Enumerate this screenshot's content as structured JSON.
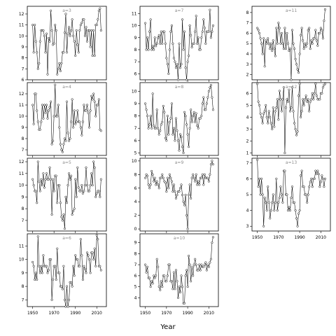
{
  "chart_data": {
    "type": "scatter",
    "title": "",
    "xlabel": "Year",
    "ylabel": "",
    "x_start": 1950,
    "x_end": 2014,
    "xlim": [
      1945,
      2019
    ],
    "x_ticks": [
      1950,
      1970,
      1990,
      2010
    ],
    "point_color": "#ffffff",
    "line_color": "#000000",
    "title_color": "#8c8c8c",
    "panels": [
      {
        "title": "a=3",
        "ylim": [
          6,
          12.7
        ],
        "yticks": [
          6,
          7,
          8,
          9,
          10,
          11,
          12
        ],
        "values": [
          11,
          8.5,
          11,
          9.5,
          8.5,
          7,
          7.5,
          9.5,
          10.5,
          10.5,
          10.5,
          10,
          8.5,
          10.2,
          6.5,
          9.8,
          9.5,
          12.3,
          10.5,
          9.2,
          9.3,
          11,
          10.5,
          6.5,
          7,
          7.5,
          6.8,
          7.5,
          8.5,
          8.5,
          10.3,
          12,
          8.5,
          10.2,
          10.8,
          10,
          10.5,
          11.5,
          10,
          9.5,
          8.2,
          10.5,
          9.2,
          8.5,
          10.5,
          11,
          11.2,
          11.5,
          11.5,
          10,
          10.8,
          9.5,
          10.5,
          10.5,
          9,
          10.5,
          8.2,
          10.5,
          8.2,
          11,
          11,
          11.5,
          12.3,
          12.5,
          10.5
        ]
      },
      {
        "title": "a=7",
        "ylim": [
          5.5,
          11.6
        ],
        "yticks": [
          6,
          7,
          8,
          9,
          10,
          11
        ],
        "values": [
          10.2,
          8,
          9,
          8,
          9.5,
          10.5,
          8,
          8.3,
          8,
          9,
          8.3,
          8.5,
          9,
          9.2,
          8.5,
          9.5,
          8.5,
          9.5,
          9.5,
          8.5,
          7.3,
          6.8,
          6,
          8,
          9.5,
          10,
          8.5,
          7.3,
          7,
          6.5,
          6.8,
          5.5,
          8.5,
          6.5,
          6.8,
          10.5,
          8,
          9.5,
          6.5,
          5.5,
          7,
          7.5,
          10,
          9.2,
          8.2,
          8.5,
          8.5,
          9.5,
          10.8,
          8.5,
          9,
          8,
          8,
          9,
          9.5,
          10.5,
          9.8,
          8.5,
          9.5,
          9.5,
          9.5,
          11.3,
          9,
          9.5,
          10
        ]
      },
      {
        "title": "a=11",
        "ylim": [
          1.5,
          8.6
        ],
        "yticks": [
          2,
          3,
          4,
          5,
          6,
          7,
          8
        ],
        "values": [
          6.5,
          6.3,
          6,
          5.5,
          5,
          4,
          5.5,
          2.8,
          5.3,
          5,
          5.5,
          5,
          4.5,
          5,
          4.3,
          5.3,
          4.5,
          3.8,
          6.5,
          5,
          7,
          6.5,
          5,
          6,
          5,
          4.5,
          6.5,
          4.5,
          6,
          5,
          4.3,
          4.5,
          1.5,
          6.3,
          5,
          4.5,
          3.5,
          3,
          2.5,
          2.2,
          4,
          5.8,
          6.5,
          5.3,
          4.5,
          5,
          4.7,
          5,
          6.3,
          6.5,
          4.5,
          5.3,
          5,
          5.5,
          5.5,
          6.3,
          5.3,
          4.8,
          6,
          6,
          6.5,
          6.3,
          5.5,
          7.2,
          8.3
        ]
      },
      {
        "title": "a=4",
        "ylim": [
          6.5,
          13
        ],
        "yticks": [
          7,
          8,
          9,
          10,
          11,
          12
        ],
        "values": [
          11,
          9.3,
          12,
          12,
          10.5,
          9.5,
          8.8,
          8.8,
          9.5,
          11,
          9.8,
          11,
          10.3,
          11,
          9.8,
          10.5,
          10.8,
          11.3,
          7.5,
          7.8,
          10,
          12.8,
          10,
          10,
          11,
          9,
          7.5,
          7,
          6.8,
          7.5,
          8,
          7.8,
          11.3,
          8.5,
          7.8,
          8,
          9.5,
          11.5,
          9,
          10.5,
          9.3,
          9.5,
          10.5,
          9.5,
          9.5,
          9,
          8.3,
          9.5,
          11,
          10.5,
          10.5,
          11,
          10.3,
          9,
          10.5,
          11.8,
          11.5,
          12,
          11.3,
          10,
          11,
          11,
          11.5,
          8.8,
          8.7
        ]
      },
      {
        "title": "a=8",
        "ylim": [
          4.8,
          10.7
        ],
        "yticks": [
          5,
          6,
          7,
          8,
          9,
          10
        ],
        "values": [
          9,
          8.5,
          8,
          7,
          7.3,
          8,
          7,
          9.8,
          7.2,
          7,
          7,
          8.5,
          7,
          6.5,
          6.8,
          7.3,
          7.5,
          8.8,
          8.3,
          6.2,
          6,
          8,
          6.5,
          7.5,
          7.8,
          9,
          6.5,
          7,
          6,
          7.8,
          6.8,
          6,
          5.2,
          6.5,
          6.3,
          5.5,
          5,
          8.3,
          8,
          7.3,
          6.5,
          5.5,
          7,
          8.5,
          7.5,
          8,
          8.3,
          7.5,
          8.2,
          7.2,
          7,
          7.8,
          7.8,
          8,
          9,
          9.5,
          8.5,
          8.5,
          9,
          9.5,
          10,
          10.3,
          10.5,
          9.5,
          8.5
        ]
      },
      {
        "title": "a=12",
        "ylim": [
          0.8,
          6.9
        ],
        "yticks": [
          1,
          2,
          3,
          4,
          5,
          6
        ],
        "values": [
          6.8,
          5.3,
          5,
          4.3,
          4,
          3.5,
          4.3,
          4.5,
          5,
          4,
          3.5,
          4.5,
          4,
          3.5,
          3,
          4.8,
          3.2,
          4.5,
          4.8,
          5.5,
          3.8,
          6.2,
          5.5,
          4.5,
          5.5,
          6.5,
          1,
          4.8,
          5.5,
          5.3,
          6.3,
          4.5,
          4.8,
          6.5,
          4.5,
          3.5,
          3,
          2.5,
          2.8,
          5.8,
          6.8,
          4,
          4.5,
          5.5,
          5,
          5.5,
          5.8,
          5.3,
          5.5,
          4.5,
          5.3,
          5.5,
          6,
          5.5,
          6,
          6.8,
          5.8,
          5.5,
          5.5,
          5.5,
          6,
          6,
          6.5,
          6.7,
          6.8
        ]
      },
      {
        "title": "a=5",
        "ylim": [
          6.1,
          12.3
        ],
        "yticks": [
          7,
          8,
          9,
          10,
          11,
          12
        ],
        "values": [
          10.5,
          10,
          9.5,
          9.5,
          8.5,
          12,
          10.3,
          9.5,
          10.5,
          10,
          11,
          9.8,
          10.5,
          11,
          10.5,
          10.5,
          11.5,
          10.5,
          7.5,
          10.5,
          9.5,
          10.8,
          10.8,
          8.5,
          10,
          10,
          8.5,
          7.3,
          7,
          7.5,
          6.3,
          9,
          8.5,
          10,
          11,
          10.5,
          10.8,
          7.5,
          7.8,
          8,
          10.5,
          9,
          11.5,
          9.8,
          9.5,
          9.5,
          10,
          9.3,
          9.5,
          10,
          11.5,
          10,
          9.5,
          9.5,
          10,
          11,
          10,
          12,
          11.5,
          9,
          9.3,
          9.5,
          9.5,
          9,
          10.5
        ]
      },
      {
        "title": "a=9",
        "ylim": [
          -0.3,
          10.4
        ],
        "yticks": [
          0,
          2,
          4,
          6,
          8,
          10
        ],
        "values": [
          7.5,
          8,
          7.8,
          6.5,
          6,
          6.5,
          8.5,
          8,
          7,
          7.5,
          6.5,
          7,
          6.5,
          6,
          7.5,
          7.5,
          8,
          7.5,
          7,
          6.8,
          5.5,
          7.5,
          6,
          8,
          7.5,
          7,
          5.5,
          6.5,
          5.5,
          4.5,
          5,
          5.5,
          5.5,
          6,
          6.5,
          5,
          4,
          3.5,
          5,
          2,
          0,
          5,
          6.5,
          4.5,
          7.5,
          8,
          7.5,
          7,
          8,
          6.5,
          7,
          6.5,
          7.5,
          7.5,
          8,
          6.5,
          8,
          7.5,
          7.5,
          7.5,
          7,
          8,
          9.5,
          10,
          9.5
        ]
      },
      {
        "title": "a=13",
        "ylim": [
          2.7,
          7.3
        ],
        "yticks": [
          3,
          4,
          5,
          6,
          7
        ],
        "values": [
          7.2,
          5.5,
          6,
          5,
          6,
          5,
          3,
          4.8,
          4.5,
          4,
          5.5,
          4.5,
          3.5,
          4,
          4.5,
          5,
          4,
          4.5,
          6,
          4,
          4.5,
          4.8,
          5.5,
          5,
          4.5,
          6.5,
          6.5,
          5,
          5,
          4,
          4.2,
          4,
          4.8,
          5.5,
          4.5,
          4.5,
          4,
          3.5,
          3,
          3.8,
          4,
          6.2,
          6.5,
          5.5,
          5.5,
          5,
          5,
          4.5,
          5,
          5.5,
          5.8,
          6,
          5.5,
          6,
          6,
          6.5,
          6.3,
          6.5,
          6.3,
          5.5,
          5.8,
          6.2,
          6,
          5.5,
          6
        ]
      },
      {
        "title": "a=6",
        "ylim": [
          6.5,
          11.9
        ],
        "yticks": [
          7,
          8,
          9,
          10,
          11
        ],
        "values": [
          9.8,
          9.5,
          8.5,
          9,
          8.5,
          11.7,
          9.5,
          9,
          9.5,
          9,
          10.3,
          9.5,
          9.5,
          9.5,
          9,
          9.2,
          10,
          10,
          7,
          8.5,
          9.5,
          9.5,
          8.5,
          10.8,
          9,
          9,
          8,
          8,
          7.8,
          9.5,
          7,
          6.5,
          8,
          6.5,
          7,
          8.3,
          8.3,
          8,
          9.5,
          8.8,
          10.3,
          10,
          10,
          9.5,
          9.5,
          11.5,
          10.3,
          8.5,
          9.5,
          9.3,
          9,
          10.5,
          10.3,
          10,
          9,
          10.5,
          10.5,
          10,
          10.8,
          9.5,
          11.8,
          11.5,
          9.5,
          9.5,
          9.2
        ]
      },
      {
        "title": "a=10",
        "ylim": [
          3.2,
          9.8
        ],
        "yticks": [
          4,
          5,
          6,
          7,
          8,
          9
        ],
        "values": [
          7,
          6.3,
          6.8,
          5.8,
          5.8,
          5,
          5.5,
          5.3,
          6,
          5.8,
          6,
          7.5,
          6.8,
          5,
          4.7,
          5.5,
          5,
          6,
          6,
          5.5,
          5.5,
          6,
          7,
          7,
          5.5,
          5.5,
          4.8,
          6.3,
          4.8,
          6.5,
          5.5,
          4,
          5,
          4.5,
          6,
          5,
          3.5,
          3.5,
          6,
          6.5,
          5,
          7.8,
          7,
          5.5,
          6.8,
          6,
          7,
          7.5,
          7,
          6.5,
          6.5,
          7,
          6.5,
          7,
          6.8,
          6.8,
          7,
          7.2,
          6.5,
          7,
          6.8,
          7.2,
          7.5,
          9,
          9.5
        ]
      }
    ]
  }
}
